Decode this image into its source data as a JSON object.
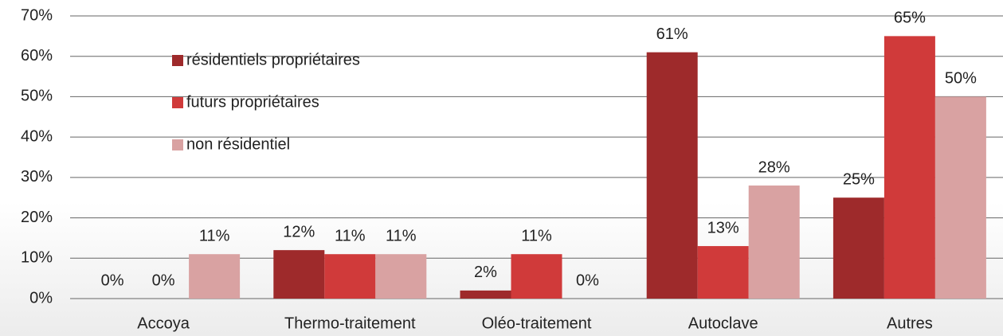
{
  "chart_data": {
    "type": "bar",
    "categories": [
      "Accoya",
      "Thermo-traitement",
      "Oléo-traitement",
      "Autoclave",
      "Autres"
    ],
    "series": [
      {
        "name": "résidentiels propriétaires",
        "color": "#9e2a2b",
        "values": [
          0,
          12,
          2,
          61,
          25
        ],
        "value_labels": [
          "0%",
          "12%",
          "2%",
          "61%",
          "25%"
        ]
      },
      {
        "name": "futurs propriétaires",
        "color": "#d03a3a",
        "values": [
          0,
          11,
          11,
          13,
          65
        ],
        "value_labels": [
          "0%",
          "11%",
          "11%",
          "13%",
          "65%"
        ]
      },
      {
        "name": "non résidentiel",
        "color": "#d9a2a2",
        "values": [
          11,
          11,
          0,
          28,
          50
        ],
        "value_labels": [
          "11%",
          "11%",
          "0%",
          "28%",
          "50%"
        ]
      }
    ],
    "ylim": [
      0,
      70
    ],
    "yticks": [
      {
        "value": 0,
        "label": "0%"
      },
      {
        "value": 10,
        "label": "10%"
      },
      {
        "value": 20,
        "label": "20%"
      },
      {
        "value": 30,
        "label": "30%"
      },
      {
        "value": 40,
        "label": "40%"
      },
      {
        "value": 50,
        "label": "50%"
      },
      {
        "value": 60,
        "label": "60%"
      },
      {
        "value": 70,
        "label": "70%"
      }
    ],
    "grid": true,
    "legend_position": "upper left"
  }
}
